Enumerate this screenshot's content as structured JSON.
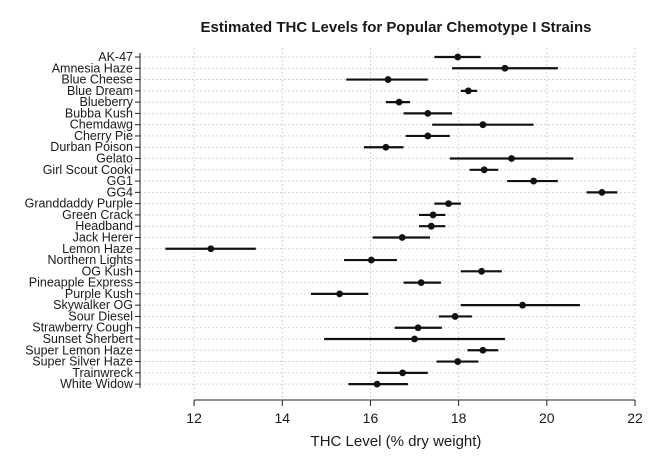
{
  "chart_data": {
    "type": "scatter",
    "title": "Estimated THC Levels for Popular Chemotype I Strains",
    "xlabel": "THC Level (% dry weight)",
    "ylabel": "",
    "xlim": [
      11.0,
      22.0
    ],
    "xticks": [
      12,
      14,
      16,
      18,
      20,
      22
    ],
    "grid": true,
    "categories": [
      "AK-47",
      "Amnesia Haze",
      "Blue Cheese",
      "Blue Dream",
      "Blueberry",
      "Bubba Kush",
      "Chemdawg",
      "Cherry Pie",
      "Durban Poison",
      "Gelato",
      "Girl Scout Cooki",
      "GG1",
      "GG4",
      "Granddaddy Purple",
      "Green Crack",
      "Headband",
      "Jack Herer",
      "Lemon Haze",
      "Northern Lights",
      "OG Kush",
      "Pineapple Express",
      "Purple Kush",
      "Skywalker OG",
      "Sour Diesel",
      "Strawberry Cough",
      "Sunset Sherbert",
      "Super Lemon Haze",
      "Super Silver Haze",
      "Trainwreck",
      "White Widow"
    ],
    "series": [
      {
        "estimate": [
          17.98,
          19.05,
          16.4,
          18.22,
          16.65,
          17.3,
          18.55,
          17.3,
          16.35,
          19.2,
          18.58,
          19.7,
          21.25,
          17.77,
          17.42,
          17.38,
          16.72,
          12.38,
          16.02,
          18.52,
          17.15,
          15.3,
          19.45,
          17.92,
          17.08,
          17.0,
          18.55,
          17.98,
          16.73,
          16.15
        ],
        "lower": [
          17.45,
          17.85,
          15.45,
          18.05,
          16.35,
          16.75,
          17.4,
          16.8,
          15.85,
          17.8,
          18.25,
          19.1,
          20.9,
          17.45,
          17.1,
          17.1,
          16.05,
          11.35,
          15.4,
          18.05,
          16.75,
          14.65,
          18.05,
          17.55,
          16.55,
          14.95,
          18.2,
          17.5,
          16.15,
          15.5
        ],
        "upper": [
          18.5,
          20.25,
          17.3,
          18.42,
          16.9,
          17.85,
          19.7,
          17.8,
          16.75,
          20.6,
          18.9,
          20.25,
          21.6,
          18.05,
          17.7,
          17.7,
          17.35,
          13.4,
          16.6,
          18.98,
          17.6,
          15.95,
          20.75,
          18.3,
          17.62,
          19.05,
          18.9,
          18.45,
          17.3,
          16.85
        ]
      }
    ]
  }
}
